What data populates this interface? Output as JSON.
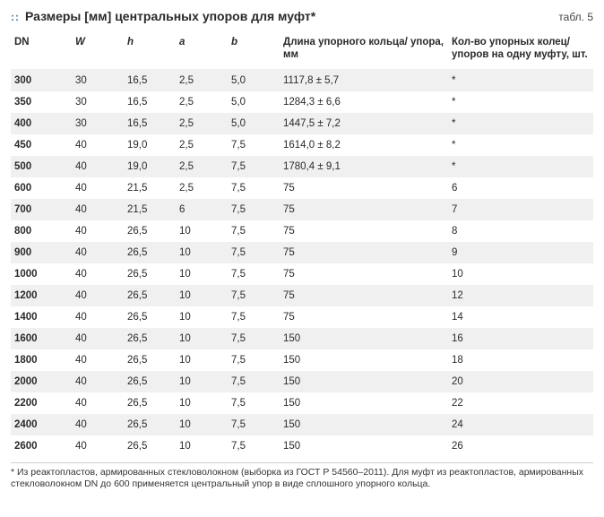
{
  "colors": {
    "accent": "#3a7b9e",
    "band_bg": "#f0f0f0",
    "text": "#2a2a2a"
  },
  "title": "Размеры [мм] центральных упоров для муфт*",
  "table_label": "табл. 5",
  "columns": {
    "dn": "DN",
    "W": "W",
    "h": "h",
    "a": "a",
    "b": "b",
    "length": "Длина упорного кольца/ упора, мм",
    "count": "Кол-во упорных колец/ упоров на одну муфту, шт."
  },
  "rows": [
    {
      "dn": "300",
      "W": "30",
      "h": "16,5",
      "a": "2,5",
      "b": "5,0",
      "length": "1117,8 ± 5,7",
      "count": "*"
    },
    {
      "dn": "350",
      "W": "30",
      "h": "16,5",
      "a": "2,5",
      "b": "5,0",
      "length": "1284,3 ± 6,6",
      "count": "*"
    },
    {
      "dn": "400",
      "W": "30",
      "h": "16,5",
      "a": "2,5",
      "b": "5,0",
      "length": "1447,5 ± 7,2",
      "count": "*"
    },
    {
      "dn": "450",
      "W": "40",
      "h": "19,0",
      "a": "2,5",
      "b": "7,5",
      "length": "1614,0 ± 8,2",
      "count": "*"
    },
    {
      "dn": "500",
      "W": "40",
      "h": "19,0",
      "a": "2,5",
      "b": "7,5",
      "length": "1780,4 ± 9,1",
      "count": "*"
    },
    {
      "dn": "600",
      "W": "40",
      "h": "21,5",
      "a": "2,5",
      "b": "7,5",
      "length": "75",
      "count": "6"
    },
    {
      "dn": "700",
      "W": "40",
      "h": "21,5",
      "a": "6",
      "b": "7,5",
      "length": "75",
      "count": "7"
    },
    {
      "dn": "800",
      "W": "40",
      "h": "26,5",
      "a": "10",
      "b": "7,5",
      "length": "75",
      "count": "8"
    },
    {
      "dn": "900",
      "W": "40",
      "h": "26,5",
      "a": "10",
      "b": "7,5",
      "length": "75",
      "count": "9"
    },
    {
      "dn": "1000",
      "W": "40",
      "h": "26,5",
      "a": "10",
      "b": "7,5",
      "length": "75",
      "count": "10"
    },
    {
      "dn": "1200",
      "W": "40",
      "h": "26,5",
      "a": "10",
      "b": "7,5",
      "length": "75",
      "count": "12"
    },
    {
      "dn": "1400",
      "W": "40",
      "h": "26,5",
      "a": "10",
      "b": "7,5",
      "length": "75",
      "count": "14"
    },
    {
      "dn": "1600",
      "W": "40",
      "h": "26,5",
      "a": "10",
      "b": "7,5",
      "length": "150",
      "count": "16"
    },
    {
      "dn": "1800",
      "W": "40",
      "h": "26,5",
      "a": "10",
      "b": "7,5",
      "length": "150",
      "count": "18"
    },
    {
      "dn": "2000",
      "W": "40",
      "h": "26,5",
      "a": "10",
      "b": "7,5",
      "length": "150",
      "count": "20"
    },
    {
      "dn": "2200",
      "W": "40",
      "h": "26,5",
      "a": "10",
      "b": "7,5",
      "length": "150",
      "count": "22"
    },
    {
      "dn": "2400",
      "W": "40",
      "h": "26,5",
      "a": "10",
      "b": "7,5",
      "length": "150",
      "count": "24"
    },
    {
      "dn": "2600",
      "W": "40",
      "h": "26,5",
      "a": "10",
      "b": "7,5",
      "length": "150",
      "count": "26"
    }
  ],
  "footnote": "* Из реактопластов, армированных стекловолокном (выборка из ГОСТ Р 54560–2011). Для муфт из реактопластов, армированных стекло­волокном DN до 600 применяется центральный упор в виде сплошного упорного кольца."
}
